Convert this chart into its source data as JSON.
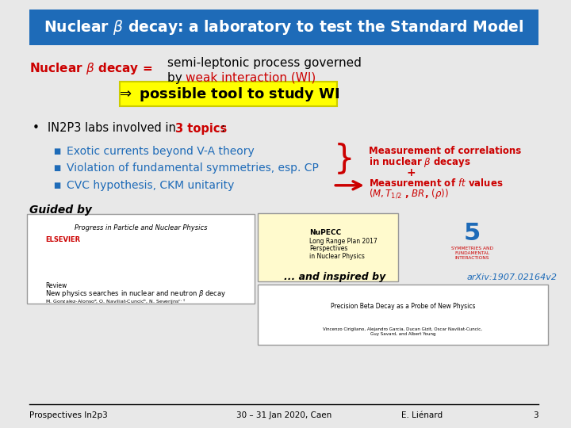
{
  "title": "Nuclear $\\beta$ decay: a laboratory to test the Standard Model",
  "title_bg": "#1e6bb8",
  "title_fg": "white",
  "bg_color": "#e8e8e8",
  "nuclear_beta_label": "Nuclear $\\beta$ decay =",
  "nuclear_beta_color": "#cc0000",
  "semi_leptonic_line1": "semi-leptonic process governed",
  "semi_leptonic_line2": "by ",
  "weak_interaction": "weak interaction (WI)",
  "weak_color": "#cc0000",
  "arrow_box_text": "$\\Rightarrow$ possible tool to study WI",
  "arrow_box_bg": "#ffff00",
  "bullet_intro": "IN2P3 labs involved in ",
  "topics_text": "3 topics",
  "topics_color": "#cc0000",
  "bullet_intro_color": "#000000",
  "bullet1": "Exotic currents beyond V-A theory",
  "bullet2": "Violation of fundamental symmetries, esp. CP",
  "bullet3": "CVC hypothesis, CKM unitarity",
  "bullet_color": "#1e6bb8",
  "meas_corr_line1": "Measurement of correlations",
  "meas_corr_line2": "in nuclear $\\beta$ decays",
  "meas_corr_plus": "+",
  "meas_ft_line1": "Measurement of $ft$ values",
  "meas_ft_line2": "$(M, T_{1/2}$ , $BR$, $(\\rho))$",
  "meas_color": "#cc0000",
  "guided_by": "Guided by",
  "and_inspired": "... and inspired by",
  "arxiv": "arXiv:1907.02164v2",
  "arxiv_color": "#1e6bb8",
  "footer_left": "Prospectives In2p3",
  "footer_mid": "30 – 31 Jan 2020, Caen",
  "footer_right": "E. Liénard",
  "footer_num": "3"
}
